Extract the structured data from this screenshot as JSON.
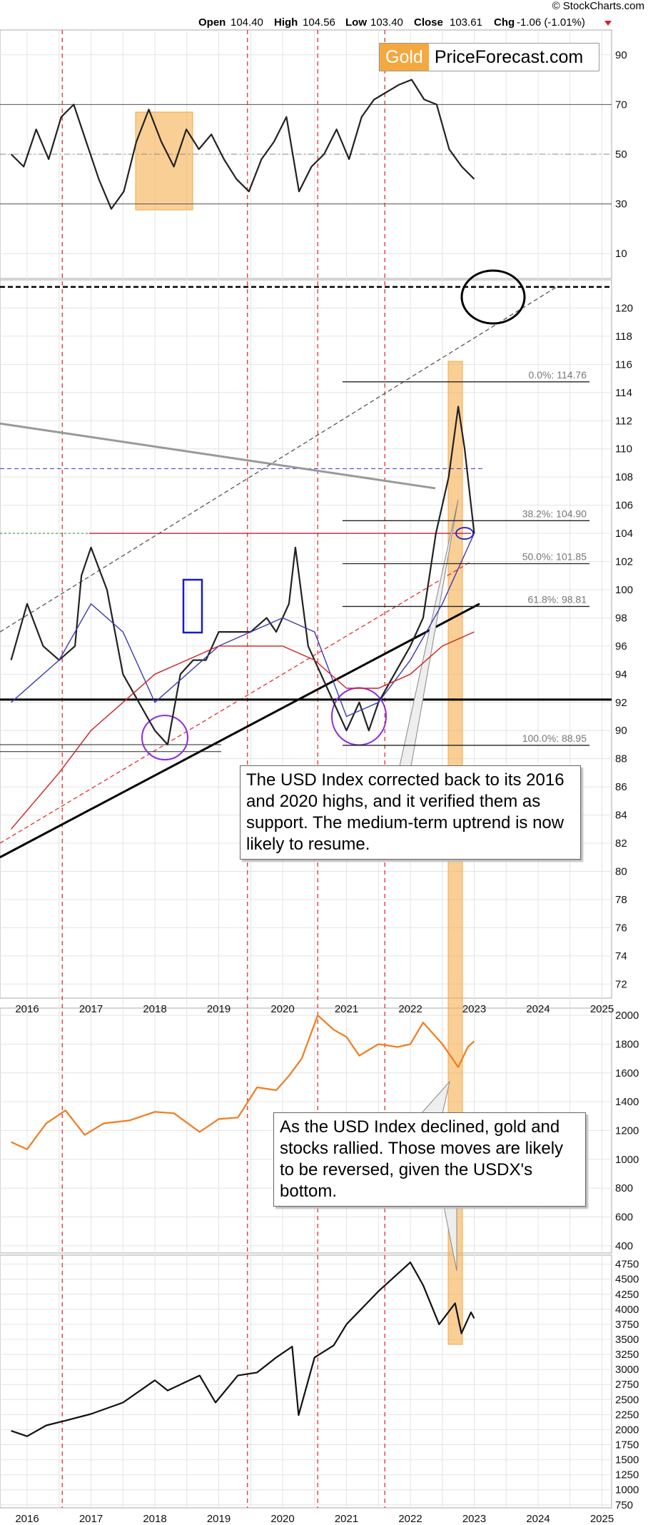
{
  "header": {
    "copyright": "© StockCharts.com",
    "open_label": "Open",
    "open_value": "104.40",
    "high_label": "High",
    "high_value": "104.56",
    "low_label": "Low",
    "low_value": "103.40",
    "close_label": "Close",
    "close_value": "103.61",
    "chg_label": "Chg",
    "chg_value": "-1.06 (-1.01%)"
  },
  "logo": {
    "word1": "Gold",
    "word2": "PriceForecast.com"
  },
  "annotations": {
    "usd_callout": "The USD Index corrected back to its 2016 and 2020 highs, and it verified them as support. The medium-term uptrend is now likely to resume.",
    "gold_callout": "As the USD Index declined, gold and stocks rallied. Those moves are likely to be reversed, given the USDX's bottom."
  },
  "colors": {
    "usd_price": "#222222",
    "gold_price": "#f07c1e",
    "stocks_price": "#111111",
    "highlight": "#f4a840",
    "ma_blue": "#3b3bb0",
    "ma_red": "#d02020",
    "cycle_line": "#e02020"
  },
  "chart_data": [
    {
      "type": "line",
      "panel": "indicator",
      "yticks": [
        "10",
        "30",
        "50",
        "70",
        "90"
      ],
      "ylim": [
        0,
        100
      ],
      "levels": [
        30,
        50,
        70
      ],
      "series": [
        {
          "values": [
            50,
            45,
            60,
            48,
            65,
            70,
            55,
            40,
            28,
            35,
            55,
            68,
            55,
            45,
            60,
            52,
            58,
            48,
            40,
            35,
            48,
            55,
            65,
            35,
            45,
            50,
            60,
            48,
            65,
            72,
            75,
            78,
            80,
            72,
            70,
            52,
            45,
            40
          ]
        }
      ]
    },
    {
      "type": "line",
      "panel": "usd-index",
      "yticks": [
        "72",
        "74",
        "76",
        "78",
        "80",
        "82",
        "84",
        "86",
        "88",
        "90",
        "92",
        "94",
        "96",
        "98",
        "100",
        "102",
        "104",
        "106",
        "108",
        "110",
        "112",
        "114",
        "116",
        "118",
        "120"
      ],
      "ylim": [
        71,
        122
      ],
      "xticks": [
        "2016",
        "2017",
        "2018",
        "2019",
        "2020",
        "2021",
        "2022",
        "2023",
        "2024",
        "2025"
      ],
      "fib_levels": [
        {
          "label": "0.0%: 114.76",
          "value": 114.76
        },
        {
          "label": "38.2%: 104.90",
          "value": 104.9
        },
        {
          "label": "50.0%: 101.85",
          "value": 101.85
        },
        {
          "label": "61.8%: 98.81",
          "value": 98.81
        },
        {
          "label": "100.0%: 88.95",
          "value": 88.95
        }
      ],
      "series": [
        {
          "x": [
            2015.75,
            2016.0,
            2016.25,
            2016.5,
            2016.75,
            2016.85,
            2017.0,
            2017.25,
            2017.5,
            2017.75,
            2018.0,
            2018.2,
            2018.4,
            2018.6,
            2018.8,
            2019.0,
            2019.25,
            2019.5,
            2019.75,
            2019.9,
            2020.1,
            2020.2,
            2020.4,
            2020.6,
            2020.8,
            2021.0,
            2021.2,
            2021.35,
            2021.5,
            2021.75,
            2022.0,
            2022.2,
            2022.4,
            2022.6,
            2022.75,
            2022.85,
            2022.95,
            2023.0
          ],
          "values": [
            95,
            99,
            96,
            95,
            96,
            101,
            103,
            100,
            94,
            92,
            90,
            89,
            94,
            95,
            95,
            97,
            97,
            97,
            98,
            97,
            99,
            103,
            96,
            94,
            92,
            90,
            92,
            90,
            92,
            94,
            96,
            98,
            104,
            108,
            113,
            110,
            106,
            104
          ]
        },
        {
          "name": "",
          "x": [
            2015.75,
            2016.5,
            2017.0,
            2017.5,
            2018.0,
            2018.5,
            2019.0,
            2019.5,
            2020.0,
            2020.5,
            2021.0,
            2021.5,
            2022.0,
            2022.5,
            2023.0
          ],
          "values": [
            92,
            95,
            99,
            97,
            92,
            94,
            96,
            97,
            98,
            97,
            91,
            92,
            95,
            99,
            104
          ]
        },
        {
          "name": "",
          "x": [
            2015.75,
            2016.5,
            2017.0,
            2017.5,
            2018.0,
            2018.5,
            2019.0,
            2019.5,
            2020.0,
            2020.5,
            2021.0,
            2021.5,
            2022.0,
            2022.5,
            2023.0
          ],
          "values": [
            83,
            87,
            90,
            92,
            94,
            95,
            96,
            96,
            96,
            95,
            93,
            93,
            94,
            96,
            97
          ]
        }
      ]
    },
    {
      "type": "line",
      "panel": "gold",
      "yticks": [
        "400",
        "600",
        "800",
        "1000",
        "1200",
        "1400",
        "1600",
        "1800",
        "2000"
      ],
      "ylim": [
        350,
        2050
      ],
      "series": [
        {
          "x": [
            2015.75,
            2016.0,
            2016.3,
            2016.6,
            2016.9,
            2017.2,
            2017.6,
            2018.0,
            2018.3,
            2018.7,
            2019.0,
            2019.3,
            2019.6,
            2019.9,
            2020.1,
            2020.3,
            2020.55,
            2020.8,
            2021.0,
            2021.2,
            2021.5,
            2021.8,
            2022.0,
            2022.2,
            2022.5,
            2022.75,
            2022.9,
            2023.0
          ],
          "values": [
            1120,
            1070,
            1250,
            1340,
            1170,
            1250,
            1270,
            1330,
            1320,
            1190,
            1280,
            1290,
            1500,
            1480,
            1580,
            1700,
            2000,
            1900,
            1850,
            1720,
            1800,
            1780,
            1800,
            1950,
            1800,
            1640,
            1780,
            1820
          ]
        }
      ]
    },
    {
      "type": "line",
      "panel": "stocks",
      "yticks": [
        "750",
        "1000",
        "1250",
        "1500",
        "1750",
        "2000",
        "2250",
        "2500",
        "2750",
        "3000",
        "3250",
        "3500",
        "3750",
        "4000",
        "4250",
        "4500",
        "4750"
      ],
      "ylim": [
        700,
        4900
      ],
      "xticks": [
        "2016",
        "2017",
        "2018",
        "2019",
        "2020",
        "2021",
        "2022",
        "2023",
        "2024",
        "2025"
      ],
      "series": [
        {
          "x": [
            2015.75,
            2016.0,
            2016.3,
            2016.6,
            2017.0,
            2017.5,
            2018.0,
            2018.2,
            2018.7,
            2018.95,
            2019.3,
            2019.6,
            2019.9,
            2020.15,
            2020.25,
            2020.5,
            2020.8,
            2021.0,
            2021.5,
            2022.0,
            2022.2,
            2022.45,
            2022.7,
            2022.8,
            2022.95,
            2023.0
          ],
          "values": [
            1980,
            1890,
            2070,
            2150,
            2260,
            2450,
            2820,
            2650,
            2900,
            2450,
            2900,
            2950,
            3200,
            3380,
            2240,
            3200,
            3400,
            3750,
            4300,
            4780,
            4400,
            3750,
            4100,
            3600,
            3950,
            3850
          ]
        }
      ]
    }
  ]
}
